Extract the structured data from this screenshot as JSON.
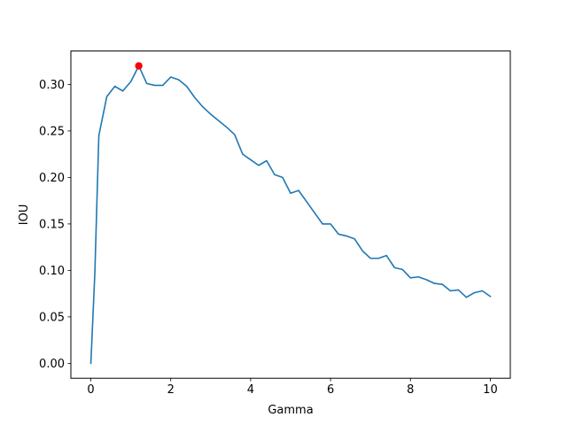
{
  "chart_data": {
    "type": "line",
    "title": "",
    "xlabel": "Gamma",
    "ylabel": "IOU",
    "xlim": [
      -0.5,
      10.5
    ],
    "ylim": [
      -0.016,
      0.336
    ],
    "grid": false,
    "x_ticks": [
      0,
      2,
      4,
      6,
      8,
      10
    ],
    "x_tick_labels": [
      "0",
      "2",
      "4",
      "6",
      "8",
      "10"
    ],
    "y_ticks": [
      0.0,
      0.05,
      0.1,
      0.15,
      0.2,
      0.25,
      0.3
    ],
    "y_tick_labels": [
      "0.00",
      "0.05",
      "0.10",
      "0.15",
      "0.20",
      "0.25",
      "0.30"
    ],
    "series": [
      {
        "color": "#1f77b4",
        "x": [
          0.0,
          0.1,
          0.2,
          0.4,
          0.6,
          0.8,
          1.0,
          1.2,
          1.4,
          1.6,
          1.8,
          2.0,
          2.2,
          2.4,
          2.6,
          2.8,
          3.0,
          3.2,
          3.4,
          3.6,
          3.8,
          4.0,
          4.2,
          4.4,
          4.6,
          4.8,
          5.0,
          5.2,
          5.4,
          5.6,
          5.8,
          6.0,
          6.2,
          6.4,
          6.6,
          6.8,
          7.0,
          7.2,
          7.4,
          7.6,
          7.8,
          8.0,
          8.2,
          8.4,
          8.6,
          8.8,
          9.0,
          9.2,
          9.4,
          9.6,
          9.8,
          10.0
        ],
        "y": [
          0.0,
          0.097,
          0.245,
          0.287,
          0.298,
          0.293,
          0.303,
          0.32,
          0.301,
          0.299,
          0.299,
          0.308,
          0.305,
          0.298,
          0.286,
          0.276,
          0.268,
          0.261,
          0.254,
          0.246,
          0.225,
          0.219,
          0.213,
          0.218,
          0.203,
          0.2,
          0.183,
          0.186,
          0.174,
          0.162,
          0.15,
          0.15,
          0.139,
          0.137,
          0.134,
          0.121,
          0.113,
          0.113,
          0.116,
          0.103,
          0.101,
          0.092,
          0.093,
          0.09,
          0.086,
          0.085,
          0.078,
          0.079,
          0.071,
          0.076,
          0.078,
          0.072
        ]
      }
    ],
    "highlight_point": {
      "x": 1.2,
      "y": 0.32,
      "color": "#ff0000"
    }
  }
}
